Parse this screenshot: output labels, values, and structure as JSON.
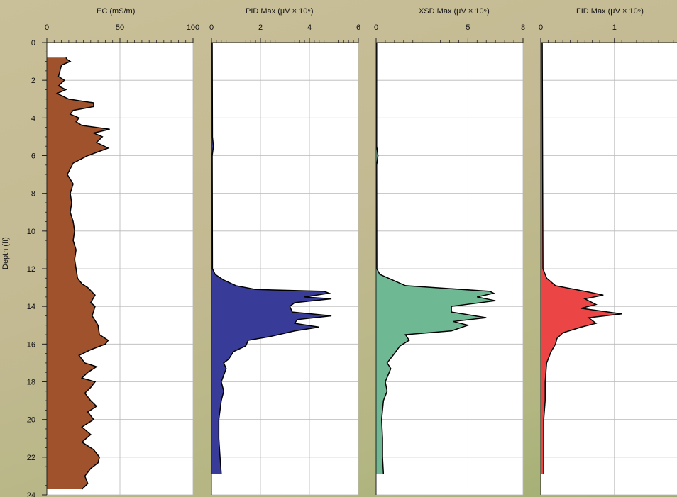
{
  "y_axis": {
    "label": "Depth (ft)",
    "ticks": [
      0,
      2,
      4,
      6,
      8,
      10,
      12,
      14,
      16,
      18,
      20,
      22,
      24
    ],
    "range": [
      0,
      24
    ]
  },
  "chart_data": [
    {
      "type": "area",
      "title": "EC (mS/m)",
      "xlim": [
        0,
        100
      ],
      "x_ticks": [
        0,
        50,
        100
      ],
      "color": "#a0522d",
      "grid": true,
      "profile": [
        [
          0.8,
          13
        ],
        [
          0.9,
          14
        ],
        [
          1.0,
          16
        ],
        [
          1.2,
          10
        ],
        [
          1.5,
          9
        ],
        [
          1.8,
          8
        ],
        [
          2.0,
          12
        ],
        [
          2.3,
          8
        ],
        [
          2.5,
          13
        ],
        [
          2.7,
          7
        ],
        [
          3.0,
          15
        ],
        [
          3.2,
          32
        ],
        [
          3.4,
          32
        ],
        [
          3.6,
          18
        ],
        [
          3.8,
          16
        ],
        [
          4.0,
          22
        ],
        [
          4.2,
          20
        ],
        [
          4.4,
          24
        ],
        [
          4.6,
          43
        ],
        [
          4.8,
          32
        ],
        [
          5.0,
          38
        ],
        [
          5.3,
          34
        ],
        [
          5.6,
          42
        ],
        [
          6.0,
          28
        ],
        [
          6.4,
          18
        ],
        [
          7.0,
          14
        ],
        [
          7.5,
          18
        ],
        [
          8.0,
          16
        ],
        [
          8.5,
          17
        ],
        [
          9.0,
          16
        ],
        [
          9.5,
          18
        ],
        [
          10.0,
          19
        ],
        [
          10.5,
          18
        ],
        [
          11.0,
          20
        ],
        [
          11.5,
          19
        ],
        [
          12.0,
          20
        ],
        [
          12.5,
          21
        ],
        [
          12.8,
          24
        ],
        [
          13.0,
          28
        ],
        [
          13.4,
          33
        ],
        [
          13.8,
          30
        ],
        [
          14.0,
          33
        ],
        [
          14.5,
          31
        ],
        [
          15.0,
          35
        ],
        [
          15.5,
          36
        ],
        [
          15.8,
          42
        ],
        [
          16.0,
          40
        ],
        [
          16.3,
          30
        ],
        [
          16.6,
          22
        ],
        [
          17.0,
          26
        ],
        [
          17.2,
          34
        ],
        [
          17.5,
          28
        ],
        [
          17.8,
          24
        ],
        [
          18.0,
          33
        ],
        [
          18.3,
          30
        ],
        [
          18.6,
          26
        ],
        [
          19.0,
          30
        ],
        [
          19.3,
          34
        ],
        [
          19.6,
          28
        ],
        [
          20.0,
          32
        ],
        [
          20.4,
          24
        ],
        [
          20.8,
          30
        ],
        [
          21.2,
          24
        ],
        [
          21.6,
          32
        ],
        [
          22.0,
          36
        ],
        [
          22.3,
          35
        ],
        [
          22.6,
          30
        ],
        [
          23.0,
          26
        ],
        [
          23.4,
          28
        ],
        [
          23.7,
          24
        ]
      ]
    },
    {
      "type": "area",
      "title": "PID Max (µV × 10⁶)",
      "xlim": [
        0,
        6
      ],
      "x_ticks": [
        0,
        2,
        4,
        6
      ],
      "color": "#383c98",
      "grid": true,
      "profile": [
        [
          0.0,
          0.03
        ],
        [
          5.0,
          0.04
        ],
        [
          5.5,
          0.08
        ],
        [
          6.0,
          0.03
        ],
        [
          12.0,
          0.04
        ],
        [
          12.3,
          0.15
        ],
        [
          12.6,
          0.5
        ],
        [
          12.9,
          1.0
        ],
        [
          13.1,
          1.8
        ],
        [
          13.2,
          4.6
        ],
        [
          13.3,
          4.8
        ],
        [
          13.5,
          3.8
        ],
        [
          13.6,
          4.9
        ],
        [
          13.8,
          3.4
        ],
        [
          14.0,
          3.2
        ],
        [
          14.3,
          3.3
        ],
        [
          14.5,
          4.9
        ],
        [
          14.7,
          3.5
        ],
        [
          14.9,
          3.4
        ],
        [
          15.1,
          4.4
        ],
        [
          15.3,
          3.4
        ],
        [
          15.6,
          2.4
        ],
        [
          15.8,
          1.5
        ],
        [
          16.1,
          1.4
        ],
        [
          16.4,
          0.9
        ],
        [
          16.8,
          0.7
        ],
        [
          17.0,
          0.5
        ],
        [
          17.3,
          0.6
        ],
        [
          18.0,
          0.4
        ],
        [
          18.5,
          0.5
        ],
        [
          19.0,
          0.4
        ],
        [
          20.0,
          0.3
        ],
        [
          21.0,
          0.3
        ],
        [
          22.0,
          0.35
        ],
        [
          22.9,
          0.4
        ]
      ]
    },
    {
      "type": "area",
      "title": "XSD Max (µV × 10⁶)",
      "xlim": [
        0,
        8
      ],
      "x_ticks": [
        0,
        5,
        8
      ],
      "color": "#6fb894",
      "grid": true,
      "profile": [
        [
          0.0,
          0.03
        ],
        [
          5.5,
          0.03
        ],
        [
          6.0,
          0.1
        ],
        [
          6.5,
          0.03
        ],
        [
          12.0,
          0.04
        ],
        [
          12.3,
          0.2
        ],
        [
          12.6,
          0.9
        ],
        [
          12.9,
          1.6
        ],
        [
          13.2,
          6.2
        ],
        [
          13.3,
          6.4
        ],
        [
          13.5,
          5.5
        ],
        [
          13.7,
          6.5
        ],
        [
          14.0,
          4.1
        ],
        [
          14.3,
          4.1
        ],
        [
          14.6,
          6.0
        ],
        [
          14.8,
          4.2
        ],
        [
          15.0,
          5.0
        ],
        [
          15.3,
          4.1
        ],
        [
          15.5,
          1.6
        ],
        [
          15.8,
          1.8
        ],
        [
          16.1,
          1.3
        ],
        [
          16.5,
          1.0
        ],
        [
          17.0,
          0.6
        ],
        [
          17.3,
          0.8
        ],
        [
          18.0,
          0.5
        ],
        [
          18.5,
          0.6
        ],
        [
          19.0,
          0.4
        ],
        [
          20.0,
          0.3
        ],
        [
          21.0,
          0.35
        ],
        [
          22.0,
          0.35
        ],
        [
          22.9,
          0.4
        ]
      ]
    },
    {
      "type": "area",
      "title": "FID Max (µV × 10⁶)",
      "xlim": [
        0,
        1.85
      ],
      "x_ticks": [
        0,
        1
      ],
      "color": "#ec4545",
      "grid": true,
      "profile": [
        [
          0.0,
          0.02
        ],
        [
          12.0,
          0.03
        ],
        [
          12.5,
          0.08
        ],
        [
          12.9,
          0.2
        ],
        [
          13.2,
          0.6
        ],
        [
          13.4,
          0.85
        ],
        [
          13.6,
          0.6
        ],
        [
          13.9,
          0.75
        ],
        [
          14.1,
          0.55
        ],
        [
          14.4,
          1.1
        ],
        [
          14.6,
          0.65
        ],
        [
          14.9,
          0.75
        ],
        [
          15.1,
          0.55
        ],
        [
          15.4,
          0.3
        ],
        [
          15.7,
          0.22
        ],
        [
          16.0,
          0.2
        ],
        [
          16.4,
          0.14
        ],
        [
          17.0,
          0.08
        ],
        [
          18.0,
          0.06
        ],
        [
          19.0,
          0.06
        ],
        [
          20.0,
          0.04
        ],
        [
          21.0,
          0.04
        ],
        [
          22.0,
          0.04
        ],
        [
          22.9,
          0.04
        ]
      ]
    }
  ]
}
